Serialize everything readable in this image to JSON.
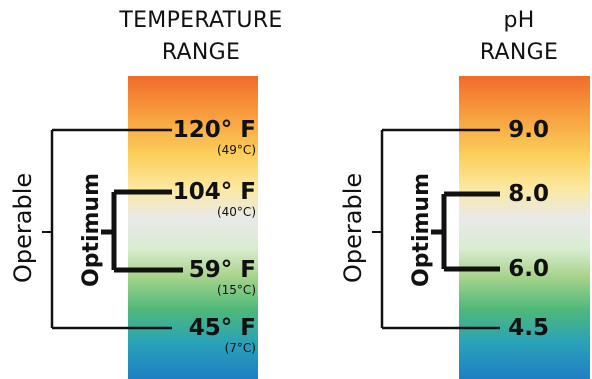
{
  "temperature": {
    "title_line1": "TEMPERATURE",
    "title_line2": "RANGE",
    "operable_label": "Operable",
    "optimum_label": "Optimum",
    "marks": [
      {
        "main": "120° F",
        "sub": "(49°C)"
      },
      {
        "main": "104° F",
        "sub": "(40°C)"
      },
      {
        "main": "59° F",
        "sub": "(15°C)"
      },
      {
        "main": "45° F",
        "sub": "(7°C)"
      }
    ]
  },
  "ph": {
    "title_line1": "pH",
    "title_line2": "RANGE",
    "operable_label": "Operable",
    "optimum_label": "Optimum",
    "marks": [
      {
        "main": "9.0"
      },
      {
        "main": "8.0"
      },
      {
        "main": "6.0"
      },
      {
        "main": "4.5"
      }
    ]
  },
  "colors": {
    "gradient_top": "#f26b2a",
    "gradient_mid": "#e9e9e9",
    "gradient_bottom": "#1f7fc4",
    "line": "#111111"
  }
}
